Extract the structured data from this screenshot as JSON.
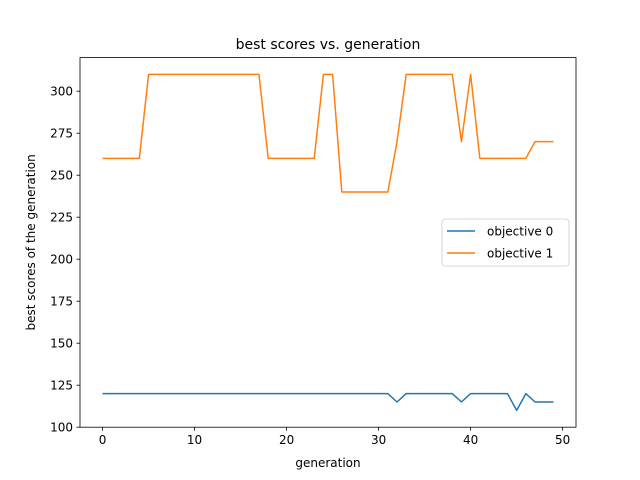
{
  "chart_data": {
    "type": "line",
    "title": "best scores vs. generation",
    "xlabel": "generation",
    "ylabel": "best scores of the generation",
    "xlim": [
      -2.45,
      51.45
    ],
    "ylim": [
      100,
      320
    ],
    "xticks": [
      0,
      10,
      20,
      30,
      40,
      50
    ],
    "yticks": [
      100,
      125,
      150,
      175,
      200,
      225,
      250,
      275,
      300
    ],
    "grid": false,
    "legend_position": "center-right",
    "x": [
      0,
      1,
      2,
      3,
      4,
      5,
      6,
      7,
      8,
      9,
      10,
      11,
      12,
      13,
      14,
      15,
      16,
      17,
      18,
      19,
      20,
      21,
      22,
      23,
      24,
      25,
      26,
      27,
      28,
      29,
      30,
      31,
      32,
      33,
      34,
      35,
      36,
      37,
      38,
      39,
      40,
      41,
      42,
      43,
      44,
      45,
      46,
      47,
      48,
      49
    ],
    "series": [
      {
        "name": "objective 0",
        "color": "#1f77b4",
        "values": [
          120,
          120,
          120,
          120,
          120,
          120,
          120,
          120,
          120,
          120,
          120,
          120,
          120,
          120,
          120,
          120,
          120,
          120,
          120,
          120,
          120,
          120,
          120,
          120,
          120,
          120,
          120,
          120,
          120,
          120,
          120,
          120,
          115,
          120,
          120,
          120,
          120,
          120,
          120,
          115,
          120,
          120,
          120,
          120,
          120,
          110,
          120,
          115,
          115,
          115
        ]
      },
      {
        "name": "objective 1",
        "color": "#ff7f0e",
        "values": [
          260,
          260,
          260,
          260,
          260,
          310,
          310,
          310,
          310,
          310,
          310,
          310,
          310,
          310,
          310,
          310,
          310,
          310,
          260,
          260,
          260,
          260,
          260,
          260,
          310,
          310,
          240,
          240,
          240,
          240,
          240,
          240,
          270,
          310,
          310,
          310,
          310,
          310,
          310,
          270,
          310,
          260,
          260,
          260,
          260,
          260,
          260,
          270,
          270,
          270
        ]
      }
    ]
  }
}
